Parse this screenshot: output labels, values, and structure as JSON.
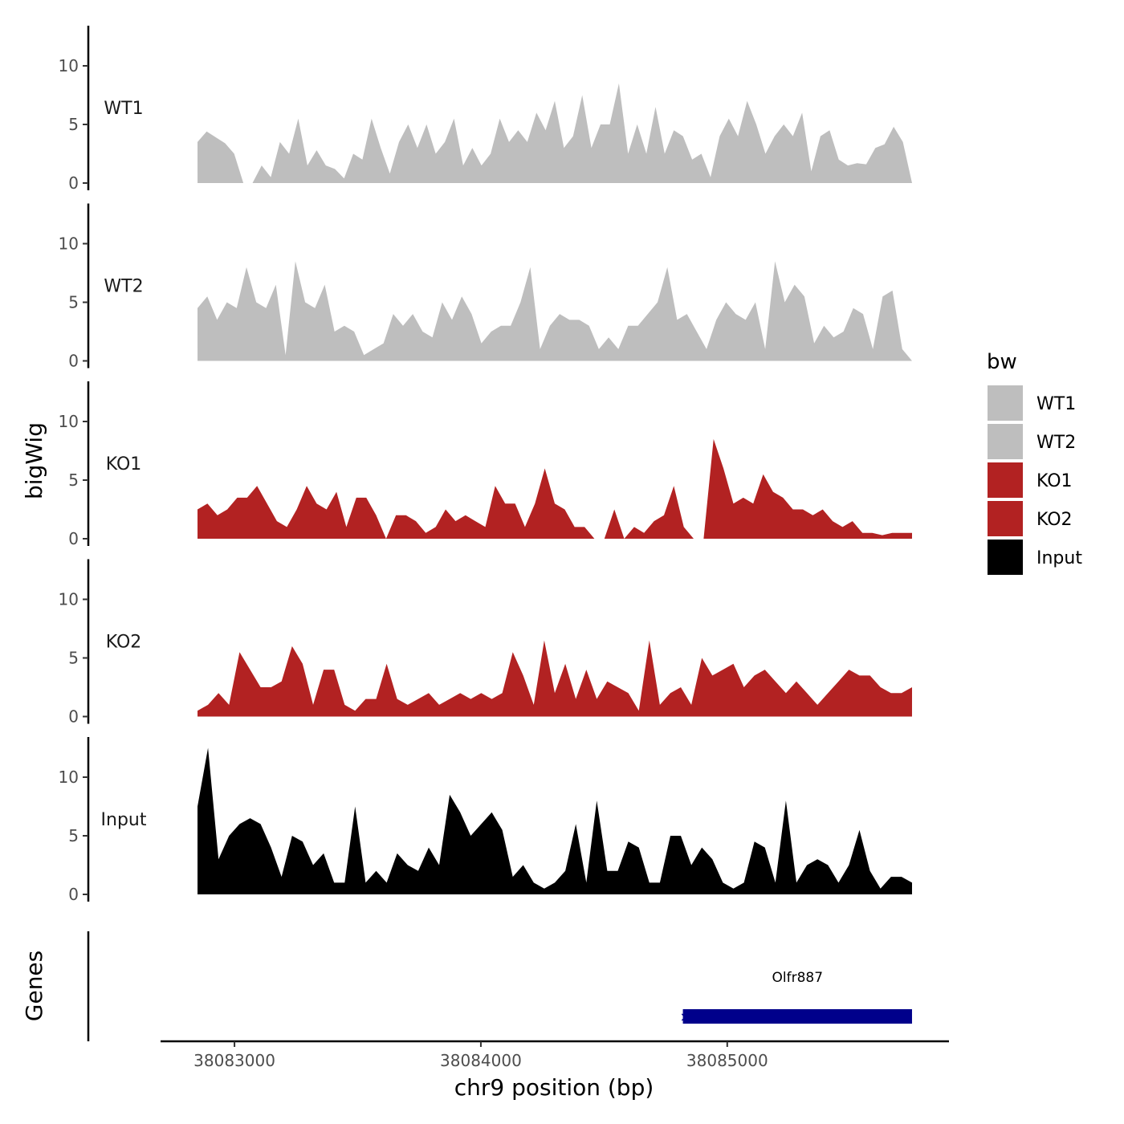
{
  "chart_data": {
    "type": "area",
    "title": "",
    "xlabel": "chr9 position (bp)",
    "ylabel": "bigWig",
    "genes_label": "Genes",
    "xlim": [
      38082700,
      38085900
    ],
    "data_x_range": [
      38082850,
      38085750
    ],
    "xticks": [
      38083000,
      38084000,
      38085000
    ],
    "xtick_labels": [
      "38083000",
      "38084000",
      "38085000"
    ],
    "ylim": [
      0,
      13.5
    ],
    "yticks": [
      0,
      5,
      10
    ],
    "ytick_labels": [
      "0",
      "5",
      "10"
    ],
    "legend": {
      "title": "bw",
      "position": "right",
      "entries": [
        {
          "label": "WT1",
          "color": "#bebebe"
        },
        {
          "label": "WT2",
          "color": "#bebebe"
        },
        {
          "label": "KO1",
          "color": "#b22222"
        },
        {
          "label": "KO2",
          "color": "#b22222"
        },
        {
          "label": "Input",
          "color": "#000000"
        }
      ]
    },
    "series": [
      {
        "name": "WT1",
        "color": "#bebebe",
        "values": [
          3.5,
          4.4,
          3.9,
          3.4,
          2.5,
          0,
          0,
          1.5,
          0.5,
          3.5,
          2.5,
          5.5,
          1.5,
          2.8,
          1.5,
          1.2,
          0.4,
          2.5,
          2,
          5.5,
          3,
          0.8,
          3.5,
          5,
          3,
          5,
          2.5,
          3.5,
          5.5,
          1.5,
          3,
          1.5,
          2.5,
          5.5,
          3.5,
          4.5,
          3.5,
          6,
          4.5,
          7,
          3,
          4,
          7.5,
          3,
          5,
          5,
          8.5,
          2.5,
          5,
          2.5,
          6.5,
          2.5,
          4.5,
          4,
          2,
          2.5,
          0.5,
          4,
          5.5,
          4,
          7,
          5,
          2.5,
          4,
          5,
          4,
          6,
          1,
          4,
          4.5,
          2,
          1.5,
          1.7,
          1.6,
          3,
          3.3,
          4.8,
          3.5,
          0
        ]
      },
      {
        "name": "WT2",
        "color": "#bebebe",
        "values": [
          4.5,
          5.5,
          3.5,
          5,
          4.5,
          8,
          5,
          4.5,
          6.5,
          0.5,
          8.5,
          5,
          4.5,
          6.5,
          2.5,
          3,
          2.5,
          0.5,
          1,
          1.5,
          4,
          3,
          4,
          2.5,
          2,
          5,
          3.5,
          5.5,
          4,
          1.5,
          2.5,
          3,
          3,
          5,
          8,
          1,
          3,
          4,
          3.5,
          3.5,
          3,
          1,
          2,
          1,
          3,
          3,
          4,
          5,
          8,
          3.5,
          4,
          2.5,
          1,
          3.5,
          5,
          4,
          3.5,
          5,
          1,
          8.5,
          5,
          6.5,
          5.5,
          1.5,
          3,
          2,
          2.5,
          4.5,
          4,
          1,
          5.5,
          6,
          1,
          0
        ]
      },
      {
        "name": "KO1",
        "color": "#b22222",
        "values": [
          2.5,
          3,
          2,
          2.5,
          3.5,
          3.5,
          4.5,
          3,
          1.5,
          1,
          2.5,
          4.5,
          3,
          2.5,
          4,
          1,
          3.5,
          3.5,
          2,
          0,
          2,
          2,
          1.5,
          0.5,
          1,
          2.5,
          1.5,
          2,
          1.5,
          1,
          4.5,
          3,
          3,
          1,
          3,
          6,
          3,
          2.5,
          1,
          1,
          0,
          0,
          2.5,
          0,
          1,
          0.5,
          1.5,
          2,
          4.5,
          1,
          0,
          0,
          8.5,
          6,
          3,
          3.5,
          3,
          5.5,
          4,
          3.5,
          2.5,
          2.5,
          2,
          2.5,
          1.5,
          1,
          1.5,
          0.5,
          0.5,
          0.3,
          0.5,
          0.5,
          0.5
        ]
      },
      {
        "name": "KO2",
        "color": "#b22222",
        "values": [
          0.5,
          1,
          2,
          1,
          5.5,
          4,
          2.5,
          2.5,
          3,
          6,
          4.5,
          1,
          4,
          4,
          1,
          0.5,
          1.5,
          1.5,
          4.5,
          1.5,
          1,
          1.5,
          2,
          1,
          1.5,
          2,
          1.5,
          2,
          1.5,
          2,
          5.5,
          3.5,
          1,
          6.5,
          2,
          4.5,
          1.5,
          4,
          1.5,
          3,
          2.5,
          2,
          0.5,
          6.5,
          1,
          2,
          2.5,
          1,
          5,
          3.5,
          4,
          4.5,
          2.5,
          3.5,
          4,
          3,
          2,
          3,
          2,
          1,
          2,
          3,
          4,
          3.5,
          3.5,
          2.5,
          2,
          2,
          2.5
        ]
      },
      {
        "name": "Input",
        "color": "#000000",
        "values": [
          7.5,
          12.5,
          3,
          5,
          6,
          6.5,
          6,
          4,
          1.5,
          5,
          4.5,
          2.5,
          3.5,
          1,
          1,
          7.5,
          1,
          2,
          1,
          3.5,
          2.5,
          2,
          4,
          2.5,
          8.5,
          7,
          5,
          6,
          7,
          5.5,
          1.5,
          2.5,
          1,
          0.5,
          1,
          2,
          6,
          1,
          8,
          2,
          2,
          4.5,
          4,
          1,
          1,
          5,
          5,
          2.5,
          4,
          3,
          1,
          0.5,
          1,
          4.5,
          4,
          1,
          8,
          1,
          2.5,
          3,
          2.5,
          1,
          2.5,
          5.5,
          2,
          0.5,
          1.5,
          1.5,
          1
        ]
      }
    ],
    "genes": [
      {
        "name": "Olfr887",
        "start": 38084820,
        "end": 38085750,
        "color": "#00008b"
      }
    ]
  }
}
